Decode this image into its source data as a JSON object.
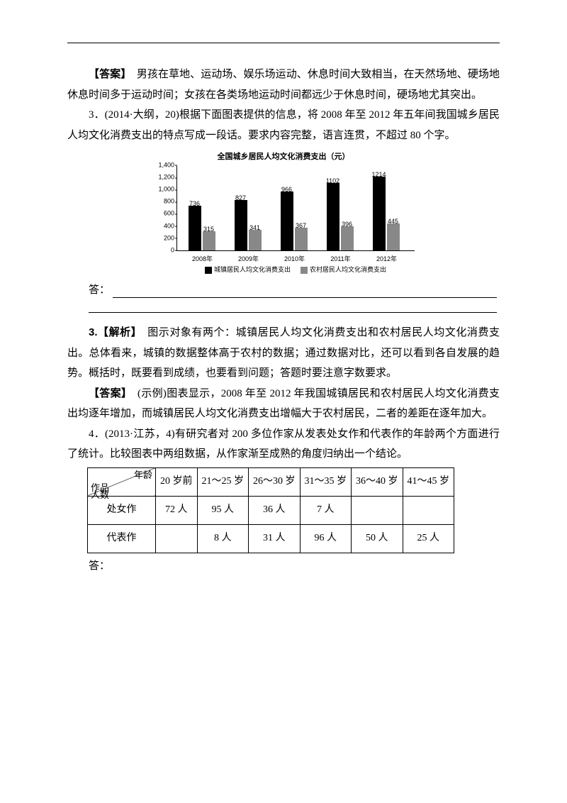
{
  "q2": {
    "answer_label": "【答案】",
    "answer_text": "　男孩在草地、运动场、娱乐场运动、休息时间大致相当，在天然场地、硬场地休息时间多于运动时间；女孩在各类场地运动时间都远少于休息时间，硬场地尤其突出。"
  },
  "q3": {
    "prompt_prefix": "3．(2014·大纲，20)根据下面图表提供的信息，将 2008 年至 2012 年五年间我国城乡居民人均文化消费支出的特点写成一段话。要求内容完整，语言连贯，不超过 80 个字。",
    "ans_label": "答：",
    "chart": {
      "type": "bar",
      "title": "全国城乡居民人均文化消费支出（元）",
      "ymax": 1400,
      "ytick_step": 200,
      "yticks": [
        0,
        200,
        400,
        600,
        800,
        1000,
        1200,
        1400
      ],
      "categories": [
        "2008年",
        "2009年",
        "2010年",
        "2011年",
        "2012年"
      ],
      "series": [
        {
          "name": "城镇居民人均文化消费支出",
          "color": "#000000",
          "values": [
            736,
            827,
            966,
            1102,
            1214
          ]
        },
        {
          "name": "农村居民人均文化消费支出",
          "color": "#888888",
          "values": [
            315,
            341,
            367,
            396,
            445
          ]
        }
      ],
      "bg": "#ffffff",
      "axis_color": "#000000",
      "label_fontsize": 9
    },
    "analysis_label": "3.【解析】",
    "analysis_text": "　图示对象有两个：城镇居民人均文化消费支出和农村居民人均文化消费支出。总体看来，城镇的数据整体高于农村的数据；通过数据对比，还可以看到各自发展的趋势。概括时，既要看到成绩，也要看到问题；答题时要注意字数要求。",
    "answer_label": "【答案】",
    "answer_text": "　(示例)图表显示，2008 年至 2012 年我国城镇居民和农村居民人均文化消费支出均逐年增加，而城镇居民人均文化消费支出增幅大于农村居民，二者的差距在逐年加大。"
  },
  "q4": {
    "prompt": "4．(2013·江苏，4)有研究者对 200 多位作家从发表处女作和代表作的年龄两个方面进行了统计。比较图表中两组数据，从作家渐至成熟的角度归纳出一个结论。",
    "table": {
      "diag": {
        "top_right": "年龄",
        "mid_left": "人数",
        "bottom_left": "作品"
      },
      "columns": [
        "20 岁前",
        "21～25 岁",
        "26～30 岁",
        "31～35 岁",
        "36～40 岁",
        "41～45 岁"
      ],
      "rows": [
        {
          "label": "处女作",
          "cells": [
            "72 人",
            "95 人",
            "36 人",
            "7 人",
            "",
            ""
          ]
        },
        {
          "label": "代表作",
          "cells": [
            "",
            "8 人",
            "31 人",
            "96 人",
            "50 人",
            "25 人"
          ]
        }
      ]
    },
    "ans_label": "答："
  }
}
